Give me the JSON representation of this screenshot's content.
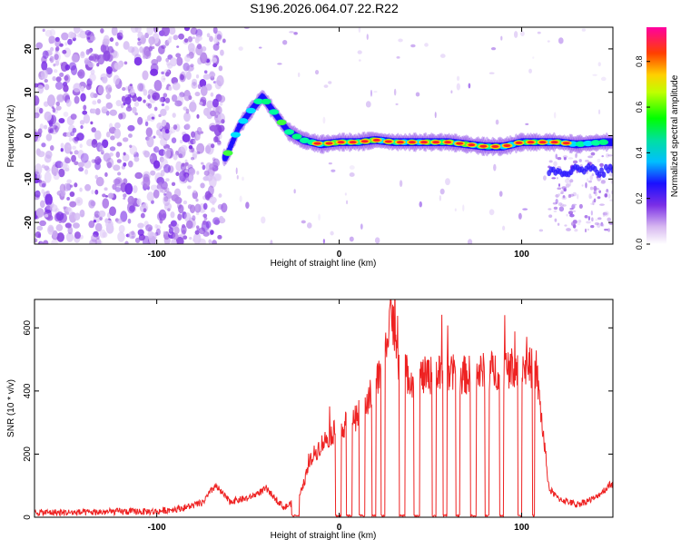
{
  "title": "S196.2026.064.07.22.R22",
  "chart_data": [
    {
      "type": "heatmap",
      "xlabel": "Height of straight line (km)",
      "ylabel": "Frequency (Hz)",
      "xlim": [
        -167,
        150
      ],
      "ylim": [
        -25,
        25
      ],
      "xticks": [
        -100,
        0,
        100
      ],
      "yticks": [
        -20,
        -10,
        0,
        10,
        20
      ],
      "colorbar": {
        "label": "Normalized spectral amplitude",
        "range": [
          0,
          0.95
        ],
        "ticks": [
          0.0,
          0.2,
          0.4,
          0.6,
          0.8
        ],
        "tick_labels": [
          "0.0",
          "0.2",
          "0.4",
          "0.6",
          "0.8"
        ]
      },
      "noise_region_x": [
        -167,
        -63
      ],
      "ridge": {
        "description_points_x": [
          -62,
          -55,
          -48,
          -42,
          -35,
          -28,
          -20,
          -10,
          0,
          10,
          20,
          30,
          40,
          50,
          60,
          70,
          80,
          90,
          100,
          110,
          120,
          130,
          145
        ],
        "description_points_y": [
          -5,
          2,
          6,
          9,
          5,
          1,
          -1,
          -2,
          -1.5,
          -1.5,
          -1,
          -1.5,
          -1.5,
          -1.5,
          -1.5,
          -2,
          -2.5,
          -2.5,
          -1.5,
          -1.5,
          -1.5,
          -2,
          -1.5
        ]
      },
      "secondary_band": {
        "x": [
          115,
          150
        ],
        "y": -8
      }
    },
    {
      "type": "line",
      "xlabel": "Height of straight line (km)",
      "ylabel": "SNR (10 * v/v)",
      "xlim": [
        -167,
        150
      ],
      "ylim": [
        0,
        690
      ],
      "xticks": [
        -100,
        0,
        100
      ],
      "yticks": [
        0,
        200,
        400,
        600
      ],
      "series": [
        {
          "name": "SNR",
          "color": "#ee2222",
          "segments_description": "low noise (~15) below -80 km; rising bursts -80 to -20; dropouts to 0 between +0 and +115; plateau ~450 from +20 to +115; peak ~690 near +28",
          "x": [
            -167,
            -140,
            -120,
            -100,
            -85,
            -75,
            -68,
            -60,
            -50,
            -40,
            -30,
            -22,
            -15,
            -10,
            -5,
            0,
            5,
            10,
            15,
            20,
            25,
            28,
            32,
            40,
            50,
            60,
            70,
            80,
            90,
            100,
            108,
            115,
            120,
            130,
            140,
            150
          ],
          "y": [
            15,
            15,
            18,
            18,
            30,
            45,
            100,
            50,
            60,
            90,
            30,
            60,
            190,
            230,
            260,
            280,
            300,
            320,
            360,
            420,
            500,
            690,
            480,
            440,
            450,
            455,
            450,
            460,
            470,
            480,
            470,
            90,
            60,
            40,
            60,
            110
          ]
        }
      ]
    }
  ]
}
